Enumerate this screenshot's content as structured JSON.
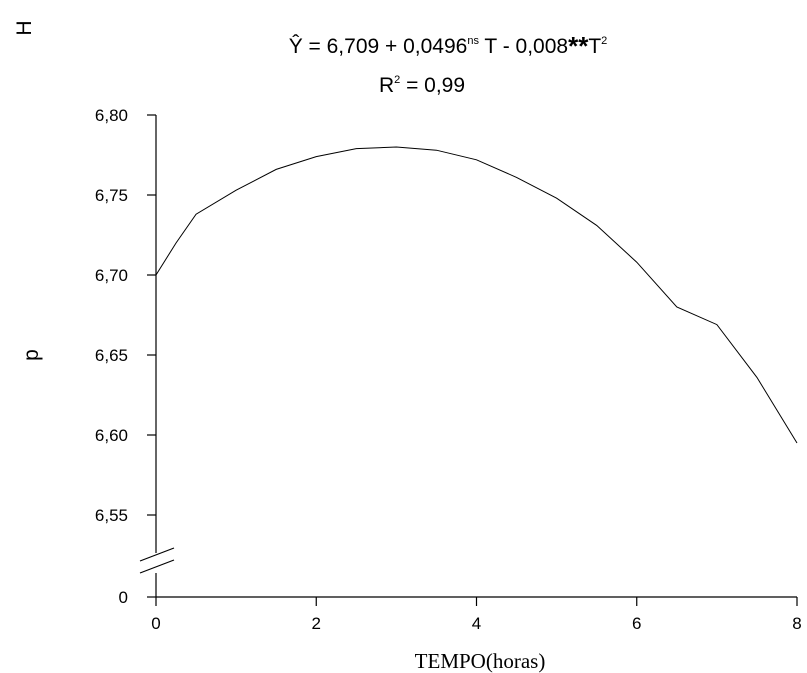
{
  "chart_data": {
    "type": "line",
    "equation": {
      "lhs": "Ŷ = 6,709 + 0,0496",
      "sup1": "ns",
      "mid": " T - 0,008",
      "stars": "**",
      "t": "T",
      "sup2": "2"
    },
    "r2": {
      "base": "R",
      "sup": "2",
      "rest": " = 0,99"
    },
    "xlabel": "TEMPO(horas)",
    "ylabel_parts": [
      "H",
      "p"
    ],
    "x_ticks": [
      {
        "value": 0,
        "label": "0"
      },
      {
        "value": 2,
        "label": "2"
      },
      {
        "value": 4,
        "label": "4"
      },
      {
        "value": 6,
        "label": "6"
      },
      {
        "value": 8,
        "label": "8"
      }
    ],
    "y_ticks": [
      {
        "value": 0,
        "label": "0"
      },
      {
        "value": 6.55,
        "label": "6,55"
      },
      {
        "value": 6.6,
        "label": "6,60"
      },
      {
        "value": 6.65,
        "label": "6,65"
      },
      {
        "value": 6.7,
        "label": "6,70"
      },
      {
        "value": 6.75,
        "label": "6,75"
      },
      {
        "value": 6.8,
        "label": "6,80"
      }
    ],
    "xlim": [
      0,
      8
    ],
    "ylim_broken": [
      6.55,
      6.8
    ],
    "axis_break": true,
    "series": [
      {
        "x": [
          0,
          0.25,
          0.5,
          1,
          1.5,
          2,
          2.5,
          3,
          3.5,
          4,
          4.5,
          5,
          5.5,
          6,
          6.5,
          7,
          7.5,
          8
        ],
        "y": [
          6.7,
          6.72,
          6.738,
          6.753,
          6.766,
          6.774,
          6.779,
          6.78,
          6.778,
          6.772,
          6.761,
          6.748,
          6.731,
          6.708,
          6.68,
          6.669,
          6.636,
          6.595
        ]
      }
    ],
    "grid": false
  }
}
